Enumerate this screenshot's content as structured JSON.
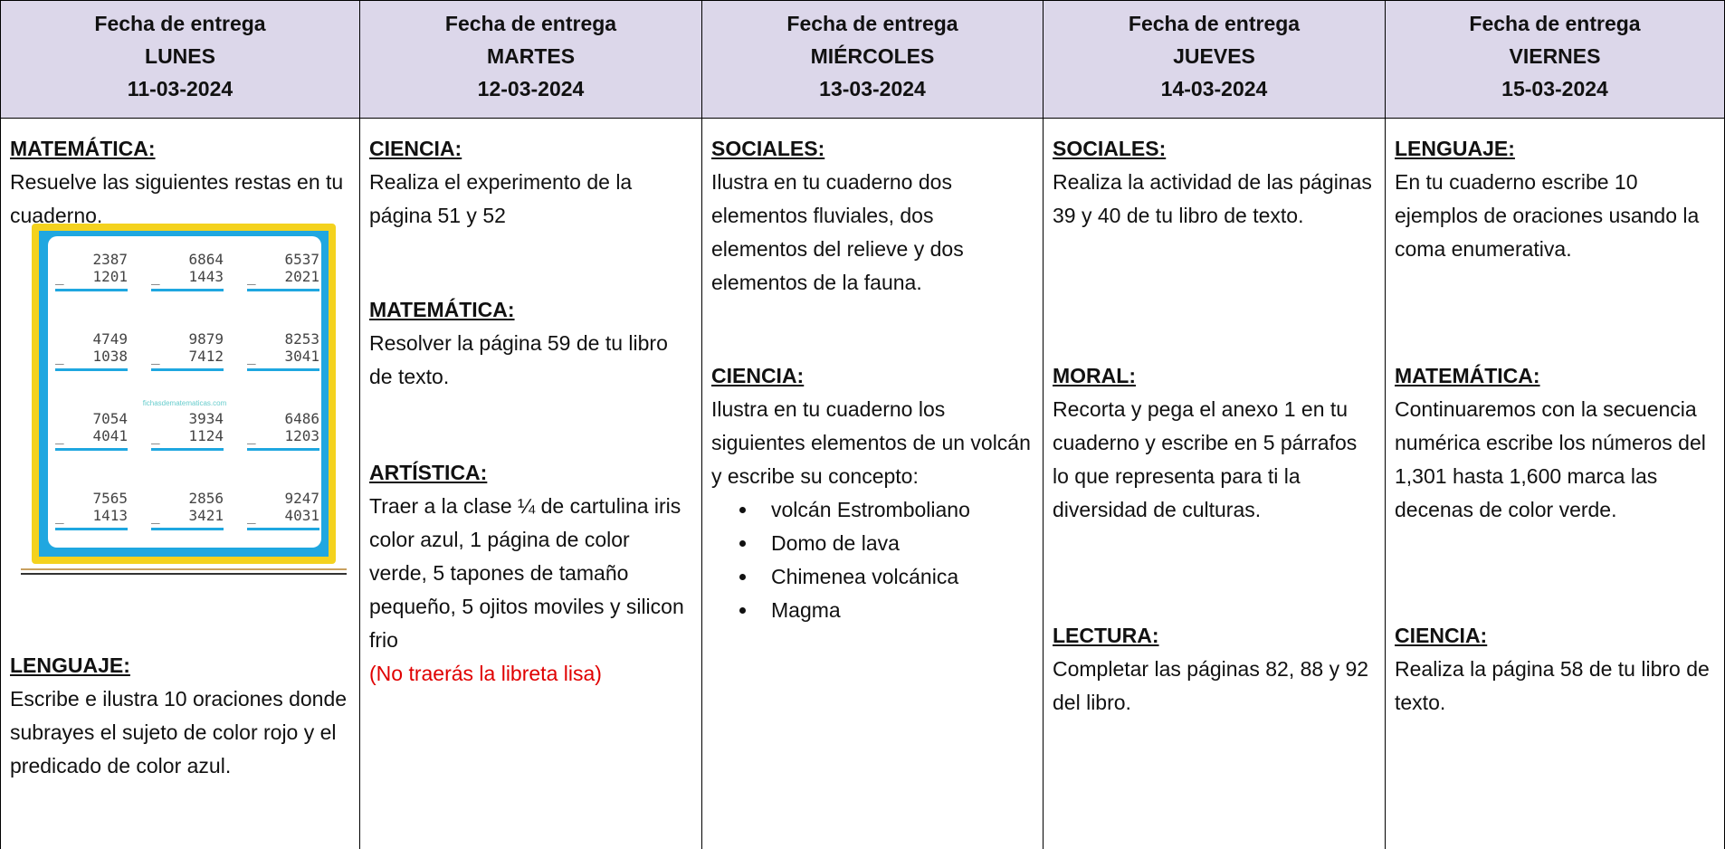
{
  "columns": [
    {
      "header": [
        "Fecha de entrega",
        "LUNES",
        "11-03-2024"
      ],
      "sections": [
        {
          "subject": "MATEMÁTICA:",
          "text": "Resuelve las siguientes restas en tu cuaderno."
        },
        {
          "subject": "LENGUAJE:",
          "text": "Escribe e ilustra 10 oraciones donde subrayes el sujeto de color rojo y el predicado de color azul."
        }
      ]
    },
    {
      "header": [
        "Fecha de entrega",
        "MARTES",
        "12-03-2024"
      ],
      "sections": [
        {
          "subject": "CIENCIA:",
          "text": "Realiza el experimento de la página 51 y 52"
        },
        {
          "subject": "MATEMÁTICA:",
          "text": "Resolver la página 59 de tu libro de texto."
        },
        {
          "subject": "ARTÍSTICA:",
          "text": "Traer a la clase ¼ de cartulina iris color azul, 1 página de color verde, 5 tapones de tamaño pequeño, 5 ojitos moviles y silicon frio",
          "note": "(No traerás la libreta lisa)"
        }
      ]
    },
    {
      "header": [
        "Fecha de entrega",
        "MIÉRCOLES",
        "13-03-2024"
      ],
      "sections": [
        {
          "subject": "SOCIALES:",
          "text": "Ilustra en tu cuaderno dos elementos fluviales, dos elementos del relieve y dos elementos de la fauna."
        },
        {
          "subject": "CIENCIA:",
          "text": "Ilustra en tu cuaderno los siguientes elementos de un volcán y escribe su concepto:",
          "items": [
            "volcán Estromboliano",
            "Domo de lava",
            "Chimenea volcánica",
            "Magma"
          ]
        }
      ]
    },
    {
      "header": [
        "Fecha de entrega",
        "JUEVES",
        "14-03-2024"
      ],
      "sections": [
        {
          "subject": "SOCIALES:",
          "text": "Realiza la actividad de las páginas 39 y 40 de tu libro de texto."
        },
        {
          "subject": "MORAL:",
          "text": "Recorta y pega el anexo 1 en tu cuaderno y escribe en 5 párrafos lo que representa para ti la diversidad de culturas."
        },
        {
          "subject": "LECTURA:",
          "text": "Completar las páginas 82, 88 y 92 del libro."
        }
      ]
    },
    {
      "header": [
        "Fecha de entrega",
        "VIERNES",
        "15-03-2024"
      ],
      "sections": [
        {
          "subject": "LENGUAJE:",
          "text": "En tu cuaderno escribe 10 ejemplos de oraciones usando la coma enumerativa."
        },
        {
          "subject": "MATEMÁTICA:",
          "text": "Continuaremos con la secuencia numérica escribe los números del 1,301 hasta 1,600 marca las decenas de color verde."
        },
        {
          "subject": "CIENCIA:",
          "text": "Realiza la página 58 de tu libro de texto."
        }
      ]
    }
  ],
  "worksheet": {
    "source": "fichasdematematicas.com",
    "problems": [
      [
        "2387",
        "1201"
      ],
      [
        "6864",
        "1443"
      ],
      [
        "6537",
        "2021"
      ],
      [
        "4749",
        "1038"
      ],
      [
        "9879",
        "7412"
      ],
      [
        "8253",
        "3041"
      ],
      [
        "7054",
        "4041"
      ],
      [
        "3934",
        "1124"
      ],
      [
        "6486",
        "1203"
      ],
      [
        "7565",
        "1413"
      ],
      [
        "2856",
        "3421"
      ],
      [
        "9247",
        "4031"
      ]
    ],
    "operator": "_"
  }
}
